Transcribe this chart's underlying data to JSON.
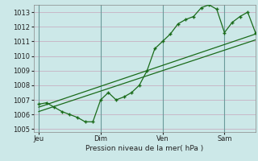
{
  "title": "Pression niveau de la mer( hPa )",
  "bg_color": "#cce8e8",
  "grid_color": "#c8b8c8",
  "line_color": "#1a6b1a",
  "ylim": [
    1004.8,
    1013.5
  ],
  "yticks": [
    1005,
    1006,
    1007,
    1008,
    1009,
    1010,
    1011,
    1012,
    1013
  ],
  "day_positions": [
    0,
    48,
    96,
    144
  ],
  "day_labels": [
    "Jeu",
    "Dim",
    "Ven",
    "Sam"
  ],
  "xlim": [
    -4,
    168
  ],
  "forecast_x": [
    0,
    6,
    12,
    18,
    24,
    30,
    36,
    42,
    48,
    54,
    60,
    66,
    72,
    78,
    84,
    90,
    96,
    102,
    108,
    114,
    120,
    126,
    132,
    138,
    144,
    150,
    156,
    162,
    168
  ],
  "forecast_y": [
    1006.7,
    1006.8,
    1006.5,
    1006.2,
    1006.0,
    1005.8,
    1005.5,
    1005.5,
    1007.0,
    1007.5,
    1007.0,
    1007.2,
    1007.5,
    1008.0,
    1009.0,
    1010.5,
    1011.0,
    1011.5,
    1012.2,
    1012.5,
    1012.7,
    1013.3,
    1013.5,
    1013.2,
    1011.6,
    1012.3,
    1012.7,
    1013.0,
    1011.6
  ],
  "trend1_x": [
    0,
    168
  ],
  "trend1_y": [
    1006.5,
    1011.5
  ],
  "trend2_x": [
    0,
    168
  ],
  "trend2_y": [
    1006.2,
    1011.1
  ],
  "vline_color": "#6a9a9a"
}
